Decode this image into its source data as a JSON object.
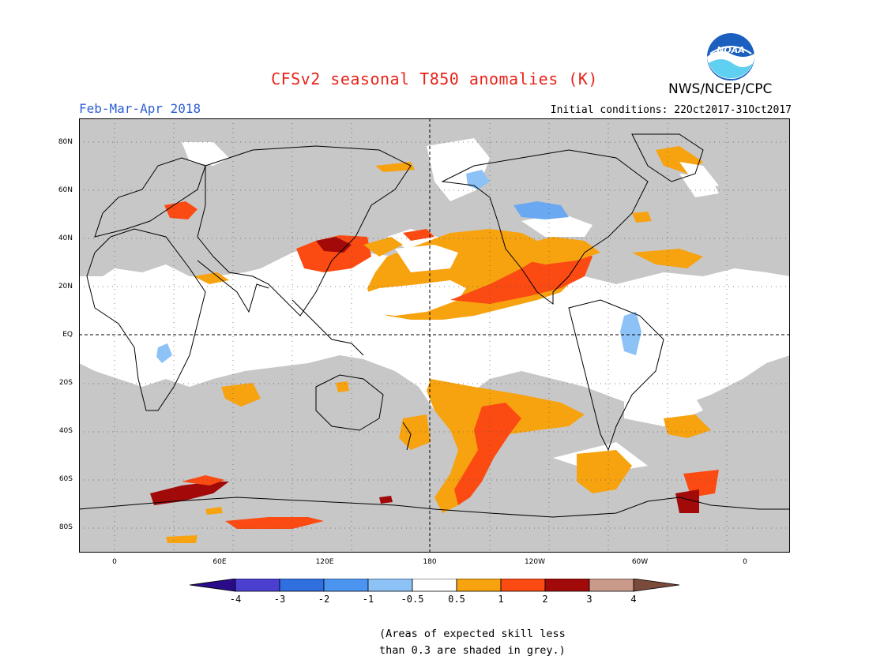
{
  "header": {
    "title": "CFSv2 seasonal T850 anomalies (K)",
    "agency": "NWS/NCEP/CPC",
    "period": "Feb-Mar-Apr 2018",
    "initial_conditions": "Initial conditions: 22Oct2017-31Oct2017",
    "logo_text": "NOAA"
  },
  "map": {
    "projection": "equirectangular",
    "lon_range": [
      -20,
      380
    ],
    "lat_range": [
      -90,
      90
    ],
    "grey_meaning": "skill < 0.3",
    "lat_labels": [
      "80N",
      "60N",
      "40N",
      "20N",
      "EQ",
      "20S",
      "40S",
      "60S",
      "80S"
    ],
    "lon_labels": [
      "0",
      "60E",
      "120E",
      "180",
      "120W",
      "60W",
      "0"
    ]
  },
  "colorbar": {
    "labels": [
      "-4",
      "-3",
      "-2",
      "-1",
      "-0.5",
      "0.5",
      "1",
      "2",
      "3",
      "4"
    ],
    "colors": [
      "#2a0b8a",
      "#4a3fcf",
      "#2f6fe0",
      "#4b95f0",
      "#8cc2f6",
      "#ffffff",
      "#f7a20f",
      "#fb4a12",
      "#a20a0a",
      "#c9998a",
      "#7a4a3a"
    ]
  },
  "colors": {
    "grey_low_skill": "#c7c7c7",
    "white_neutral": "#ffffff",
    "orange": "#f7a20f",
    "red_orange": "#fb4a12",
    "dark_red": "#a20a0a",
    "light_blue": "#8cc2f6",
    "mid_blue": "#6aa9f2"
  },
  "footnote": {
    "line1": "(Areas of expected skill less",
    "line2": "than 0.3 are shaded in grey.)"
  }
}
